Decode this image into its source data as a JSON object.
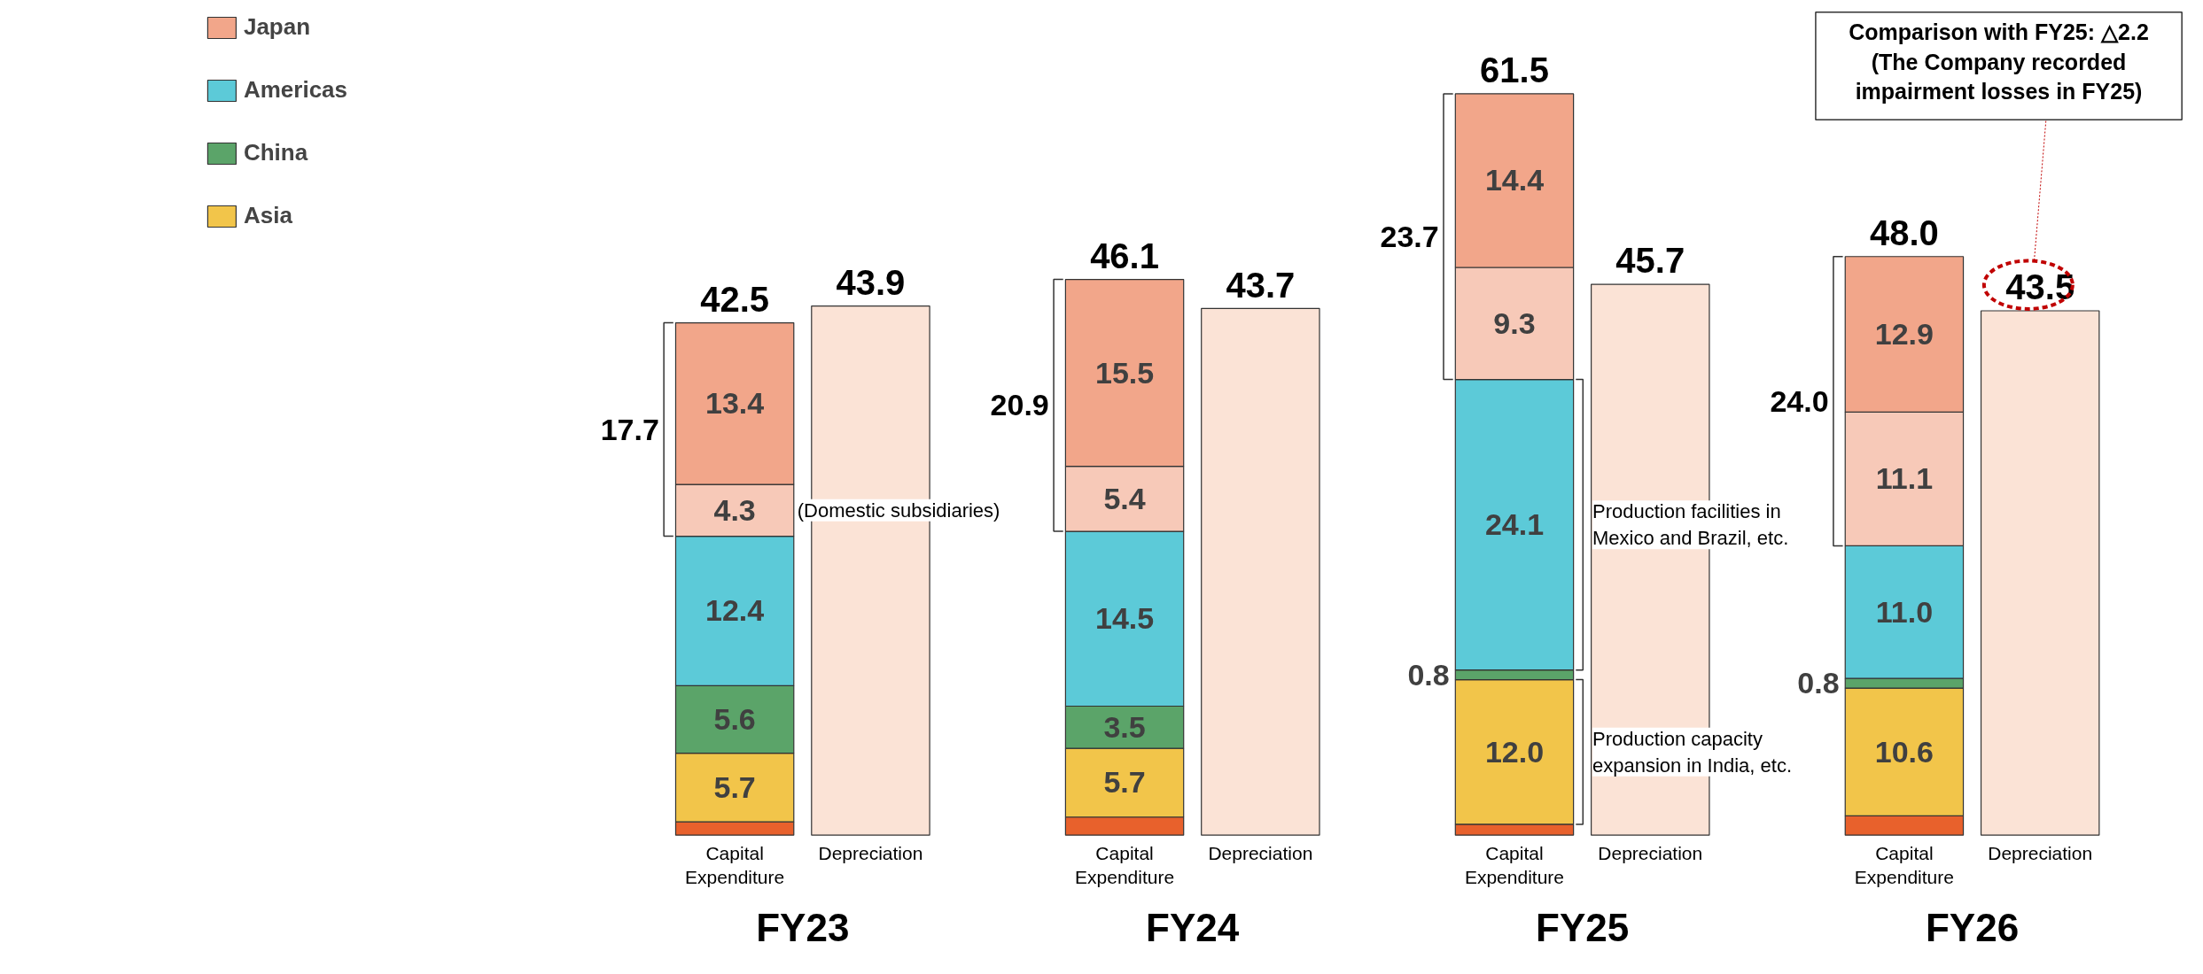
{
  "chart_data": {
    "type": "bar",
    "stacked": true,
    "categories": [
      "Capital Expenditure",
      "Depreciation",
      "Capital Expenditure",
      "Depreciation",
      "Capital Expenditure",
      "Depreciation",
      "Capital Expenditure",
      "Depreciation"
    ],
    "series": [
      {
        "color": "#e8612c",
        "values": [
          1.1,
          null,
          1.5,
          null,
          0.9,
          null,
          1.6,
          null
        ],
        "value_labels": [
          null,
          null,
          null,
          null,
          null,
          null,
          null,
          null
        ]
      },
      {
        "name": "Asia",
        "color": "#f2c54a",
        "values": [
          5.7,
          null,
          5.7,
          null,
          12.0,
          null,
          10.6,
          null
        ],
        "value_labels": [
          "5.7",
          null,
          "5.7",
          null,
          "12.0",
          null,
          "10.6",
          null
        ]
      },
      {
        "name": "China",
        "color": "#5ba469",
        "values": [
          5.6,
          null,
          3.5,
          null,
          0.8,
          null,
          0.8,
          null
        ],
        "value_labels": [
          "5.6",
          null,
          "3.5",
          null,
          "0.8",
          null,
          "0.8",
          null
        ]
      },
      {
        "name": "Americas",
        "color": "#5ccad8",
        "values": [
          12.4,
          null,
          14.5,
          null,
          24.1,
          null,
          11.0,
          null
        ],
        "value_labels": [
          "12.4",
          null,
          "14.5",
          null,
          "24.1",
          null,
          "11.0",
          null
        ]
      },
      {
        "color": "#f7c9b8",
        "values": [
          4.3,
          null,
          5.4,
          null,
          9.3,
          null,
          11.1,
          null
        ],
        "value_labels": [
          "4.3",
          null,
          "5.4",
          null,
          "9.3",
          null,
          "11.1",
          null
        ]
      },
      {
        "name": "Japan",
        "color": "#f2a68a",
        "values": [
          13.4,
          null,
          15.5,
          null,
          14.4,
          null,
          12.9,
          null
        ],
        "value_labels": [
          "13.4",
          null,
          "15.5",
          null,
          "14.4",
          null,
          "12.9",
          null
        ]
      },
      {
        "color": "#fbe3d6",
        "values": [
          null,
          43.9,
          null,
          43.7,
          null,
          45.7,
          null,
          43.5
        ],
        "value_labels": [
          null,
          null,
          null,
          null,
          null,
          null,
          null,
          null
        ]
      }
    ],
    "totals": [
      "42.5",
      "43.9",
      "46.1",
      "43.7",
      "61.5",
      "45.7",
      "48.0",
      "43.5"
    ],
    "legend": "left",
    "annotations": [
      "FY23",
      "FY24",
      "FY25",
      "FY26",
      "17.7",
      "20.9",
      "23.7",
      "24.0",
      "(Domestic subsidiaries)",
      "Production facilities in\nMexico and Brazil, etc.",
      "Production capacity\nexpansion in India, etc.",
      "Comparison with FY25: △2.2\n(The Company recorded\nimpairment losses in FY25)"
    ]
  }
}
